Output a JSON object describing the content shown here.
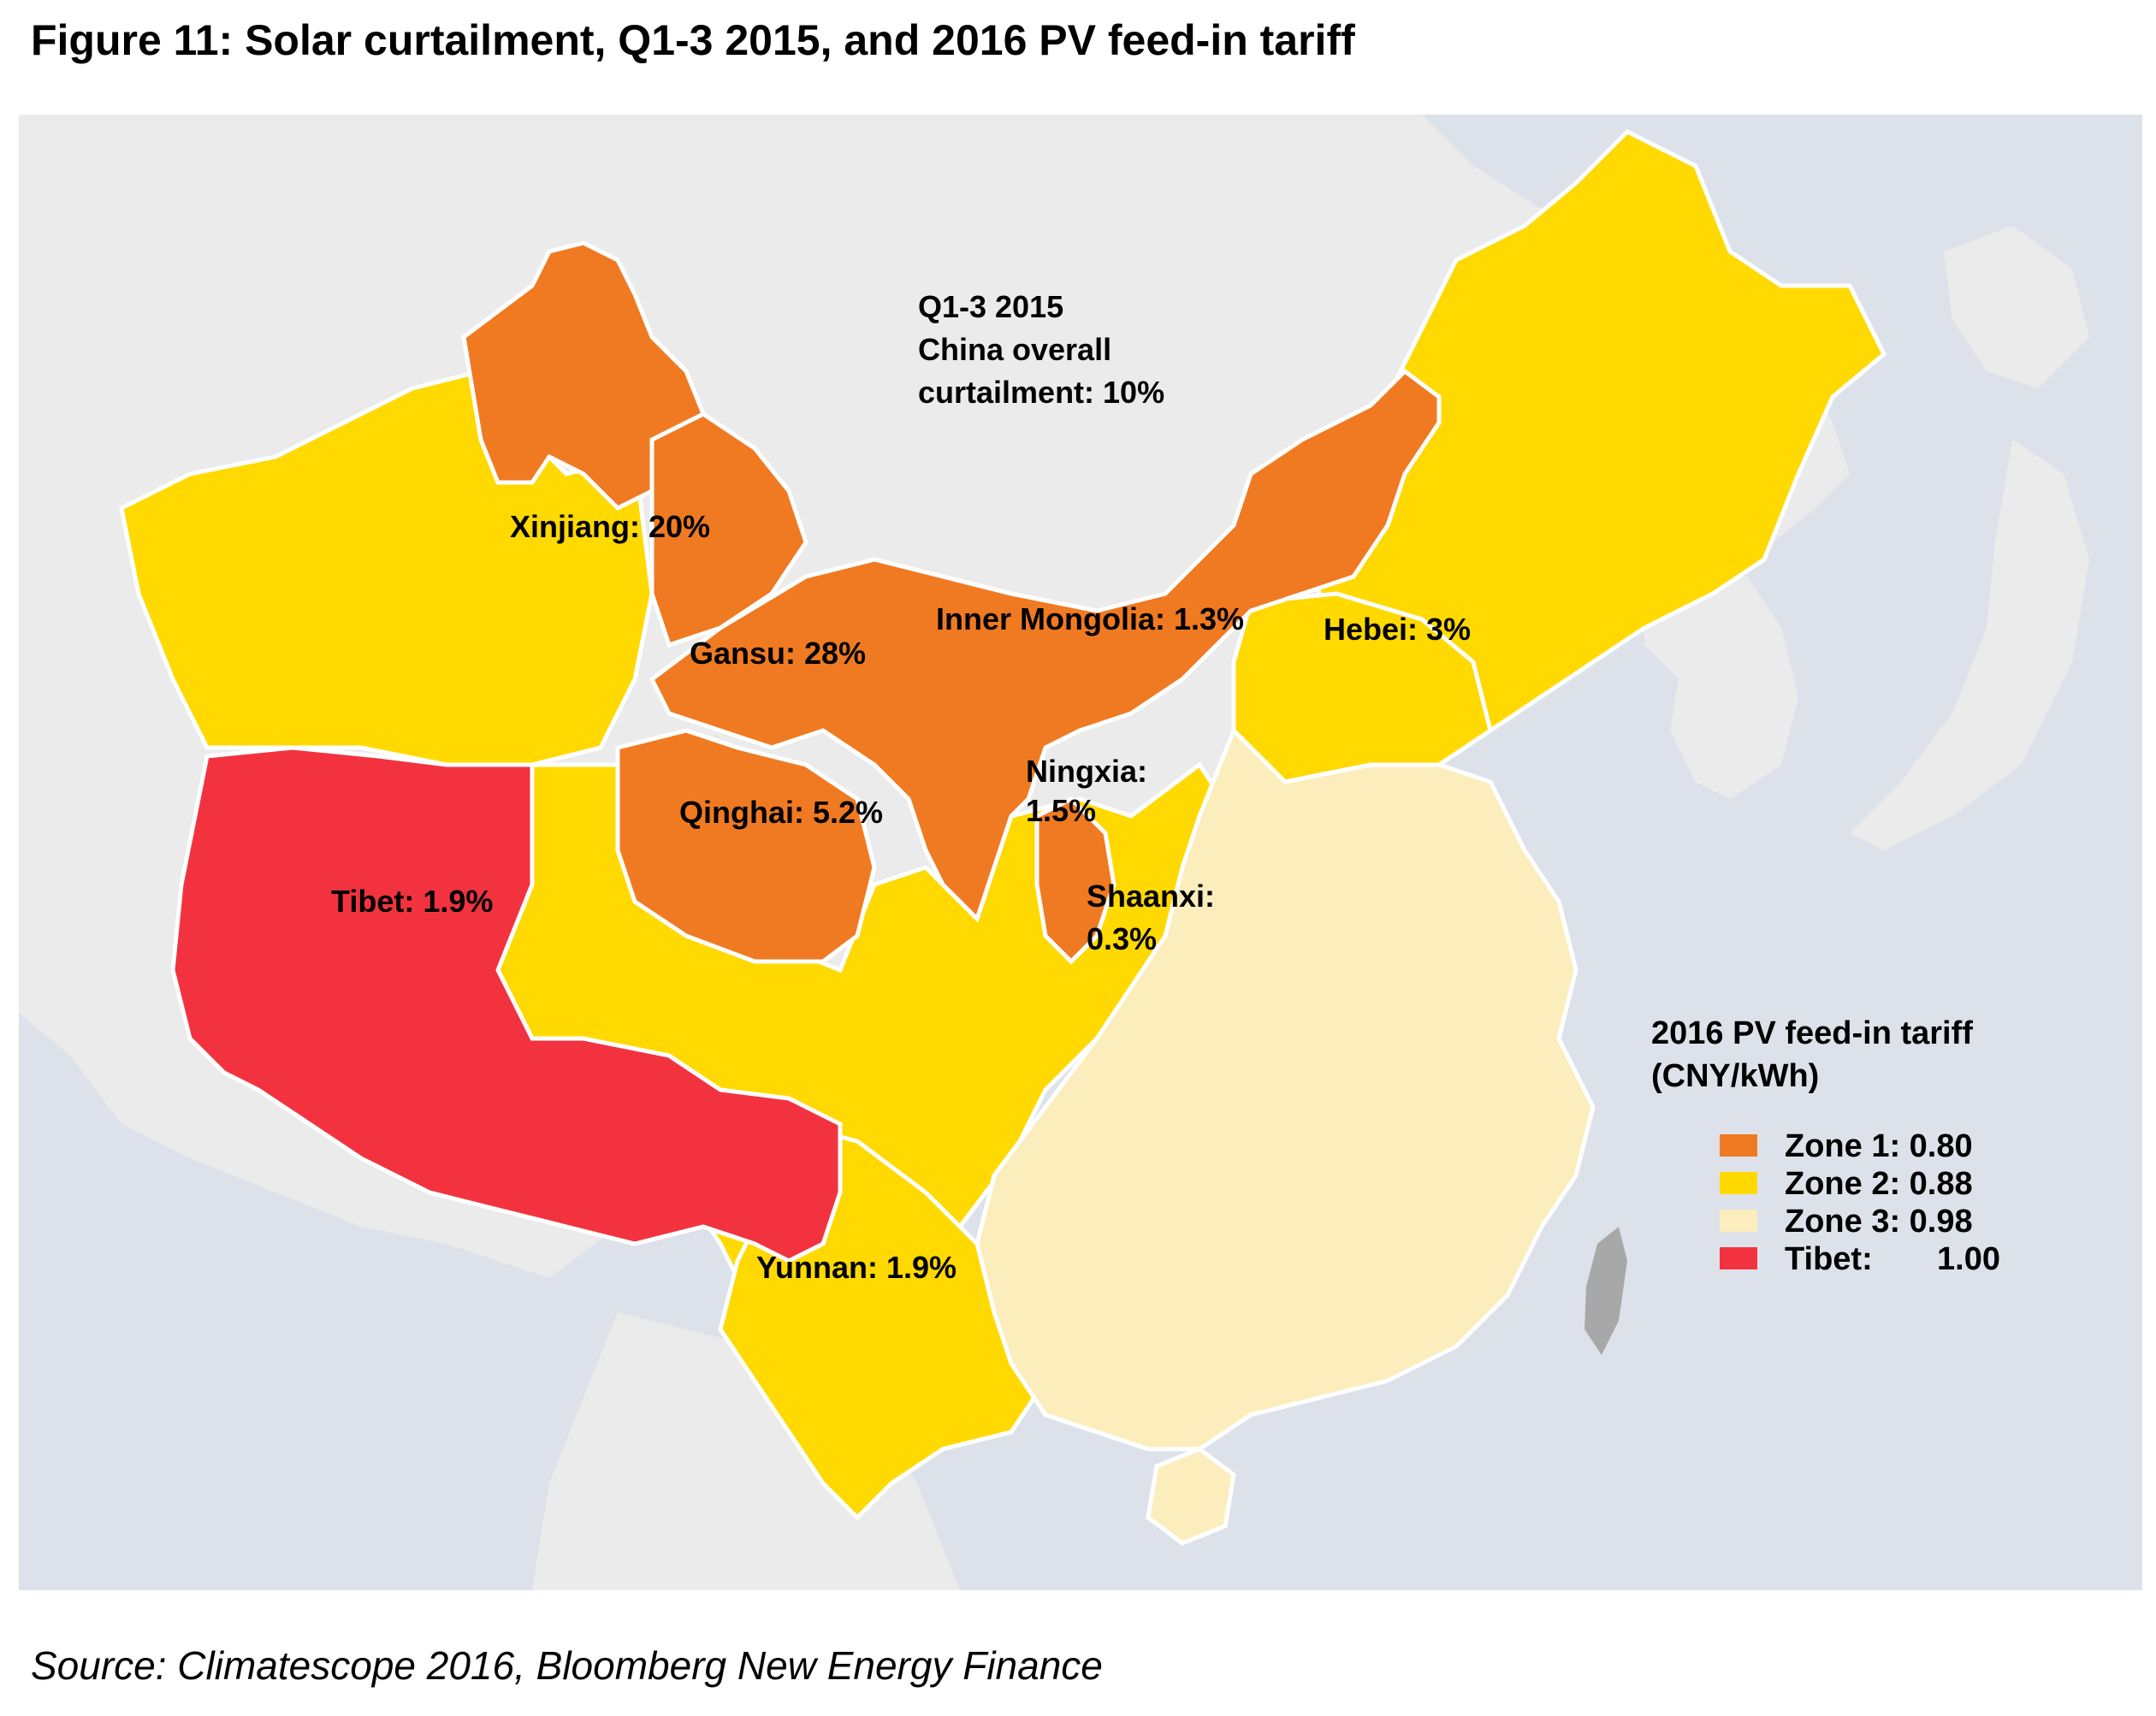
{
  "title": "Figure 11: Solar curtailment, Q1-3 2015, and 2016 PV feed-in tariff",
  "source": "Source: Climatescope 2016, Bloomberg New Energy Finance",
  "overall_note": {
    "line1": "Q1-3 2015",
    "line2": "China overall",
    "line3": "curtailment: 10%"
  },
  "colors": {
    "sea": "#dde2ea",
    "neighbor_land": "#ebebeb",
    "zone1": "#f07a22",
    "zone2": "#ffd900",
    "zone3": "#fcedbc",
    "tibet": "#f2333f",
    "taiwan": "#a8a8a8",
    "border": "#ffffff"
  },
  "provinces": [
    {
      "name": "Xinjiang",
      "label": "Xinjiang: 20%",
      "curtailment_pct": 20
    },
    {
      "name": "Gansu",
      "label": "Gansu: 28%",
      "curtailment_pct": 28
    },
    {
      "name": "Inner Mongolia",
      "label": "Inner Mongolia: 1.3%",
      "curtailment_pct": 1.3
    },
    {
      "name": "Hebei",
      "label": "Hebei: 3%",
      "curtailment_pct": 3
    },
    {
      "name": "Qinghai",
      "label": "Qinghai: 5.2%",
      "curtailment_pct": 5.2
    },
    {
      "name": "Ningxia",
      "label_lines": [
        "Ningxia:",
        "1.5%"
      ],
      "curtailment_pct": 1.5
    },
    {
      "name": "Tibet",
      "label": "Tibet: 1.9%",
      "curtailment_pct": 1.9
    },
    {
      "name": "Shaanxi",
      "label_lines": [
        "Shaanxi:",
        "0.3%"
      ],
      "curtailment_pct": 0.3
    },
    {
      "name": "Yunnan",
      "label": "Yunnan: 1.9%",
      "curtailment_pct": 1.9
    }
  ],
  "legend": {
    "title_line1": "2016 PV feed-in tariff",
    "title_line2": "(CNY/kWh)",
    "items": [
      {
        "label": "Zone 1: 0.80",
        "value": 0.8,
        "color": "#f07a22"
      },
      {
        "label": "Zone 2: 0.88",
        "value": 0.88,
        "color": "#ffd900"
      },
      {
        "label": "Zone 3: 0.98",
        "value": 0.98,
        "color": "#fcedbc"
      },
      {
        "label": "Tibet:",
        "value_text": "1.00",
        "value": 1.0,
        "color": "#f2333f"
      }
    ]
  }
}
